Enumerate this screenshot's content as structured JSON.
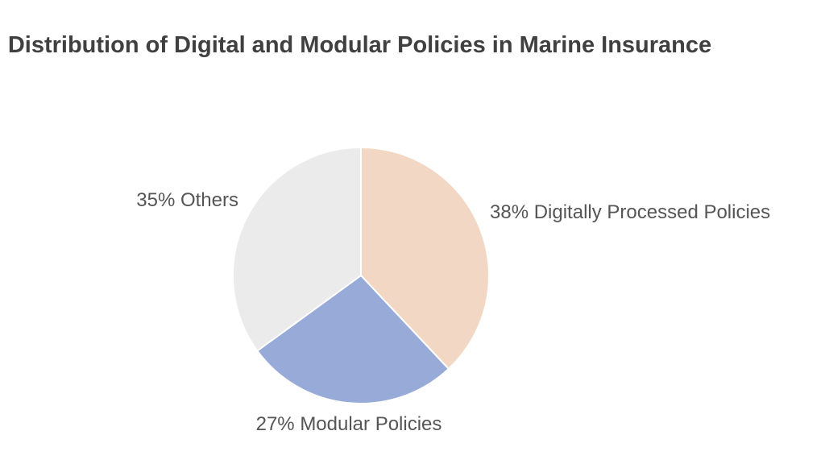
{
  "chart_data": {
    "type": "pie",
    "title": "Distribution of Digital and Modular Policies in Marine Insurance",
    "slices": [
      {
        "label": "Digitally Processed Policies",
        "value": 38,
        "color": "#f2d8c4"
      },
      {
        "label": "Modular Policies",
        "value": 27,
        "color": "#97aad8"
      },
      {
        "label": "Others",
        "value": 35,
        "color": "#ebebeb"
      }
    ],
    "slice_labels": [
      "38% Digitally Processed Policies",
      "27% Modular Policies",
      "35% Others"
    ],
    "start": "12 o'clock",
    "direction": "clockwise",
    "legend": "none"
  }
}
